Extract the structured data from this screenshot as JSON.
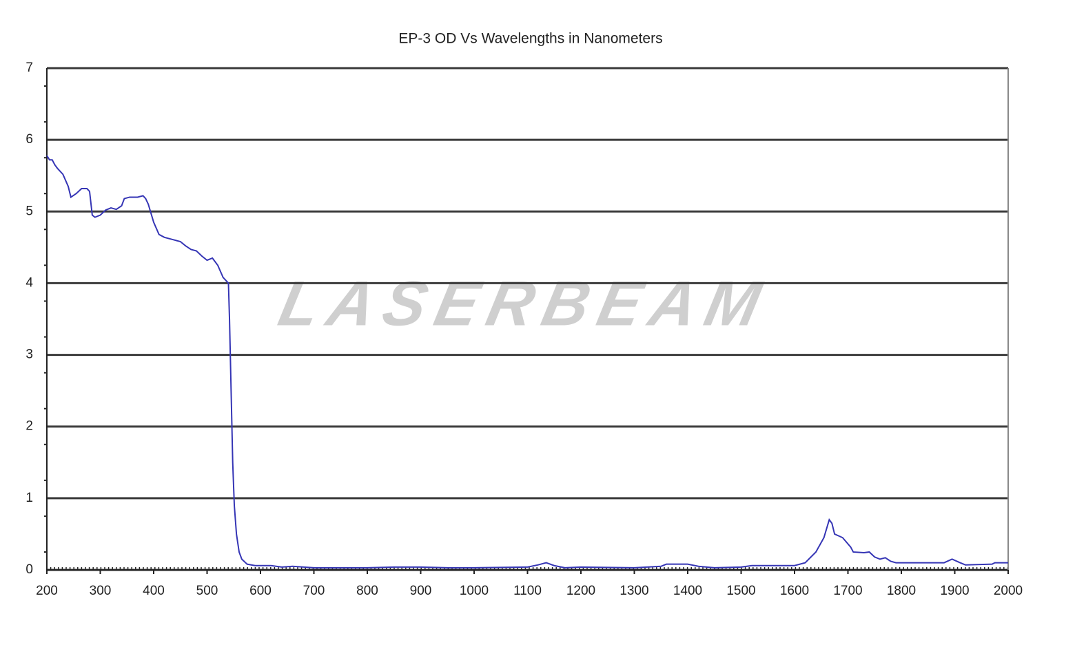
{
  "chart_data": {
    "type": "line",
    "title": "EP-3  OD Vs Wavelengths in Nanometers",
    "watermark": "LASERBEAM",
    "x": [
      200,
      205,
      210,
      215,
      220,
      230,
      240,
      245,
      255,
      265,
      275,
      280,
      285,
      290,
      300,
      310,
      320,
      330,
      340,
      345,
      355,
      370,
      380,
      385,
      390,
      400,
      410,
      420,
      440,
      450,
      460,
      470,
      480,
      490,
      500,
      510,
      520,
      530,
      540,
      542,
      545,
      548,
      551,
      555,
      560,
      565,
      575,
      590,
      620,
      640,
      660,
      700,
      800,
      850,
      900,
      950,
      1000,
      1100,
      1120,
      1135,
      1150,
      1170,
      1200,
      1300,
      1350,
      1360,
      1400,
      1420,
      1450,
      1500,
      1520,
      1600,
      1620,
      1640,
      1655,
      1665,
      1670,
      1675,
      1690,
      1705,
      1710,
      1730,
      1740,
      1750,
      1760,
      1770,
      1780,
      1790,
      1880,
      1895,
      1910,
      1920,
      1970,
      1975,
      2000
    ],
    "values": [
      5.78,
      5.72,
      5.72,
      5.65,
      5.6,
      5.52,
      5.35,
      5.2,
      5.25,
      5.32,
      5.32,
      5.28,
      4.95,
      4.92,
      4.95,
      5.02,
      5.05,
      5.03,
      5.08,
      5.18,
      5.2,
      5.2,
      5.22,
      5.18,
      5.1,
      4.85,
      4.68,
      4.64,
      4.6,
      4.58,
      4.52,
      4.47,
      4.45,
      4.38,
      4.32,
      4.35,
      4.25,
      4.08,
      4.0,
      3.5,
      2.5,
      1.5,
      0.9,
      0.5,
      0.25,
      0.15,
      0.08,
      0.06,
      0.06,
      0.04,
      0.05,
      0.03,
      0.03,
      0.04,
      0.04,
      0.03,
      0.03,
      0.04,
      0.07,
      0.1,
      0.06,
      0.03,
      0.04,
      0.03,
      0.05,
      0.08,
      0.08,
      0.05,
      0.03,
      0.04,
      0.06,
      0.06,
      0.1,
      0.25,
      0.45,
      0.7,
      0.65,
      0.5,
      0.45,
      0.32,
      0.25,
      0.24,
      0.25,
      0.18,
      0.15,
      0.17,
      0.12,
      0.1,
      0.1,
      0.15,
      0.1,
      0.07,
      0.08,
      0.1,
      0.1
    ],
    "color": "#3535b5",
    "xlim": [
      200,
      2000
    ],
    "xticks": [
      200,
      300,
      400,
      500,
      600,
      700,
      800,
      900,
      1000,
      1100,
      1200,
      1300,
      1400,
      1500,
      1600,
      1700,
      1800,
      1900,
      2000
    ],
    "ylim": [
      0,
      7
    ],
    "yticks": [
      0,
      1,
      2,
      3,
      4,
      5,
      6,
      7
    ],
    "grid": true
  }
}
